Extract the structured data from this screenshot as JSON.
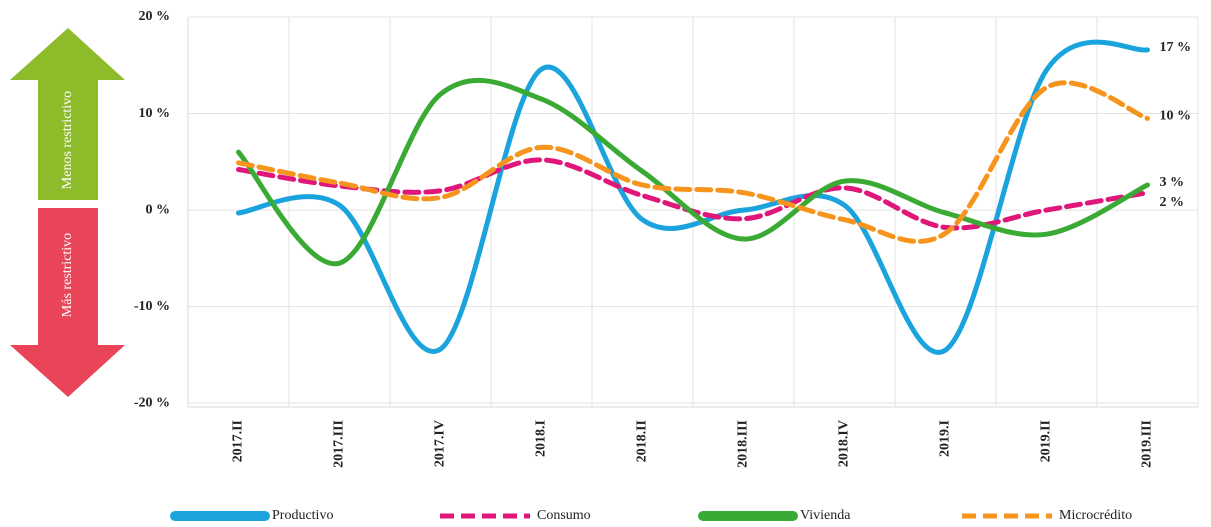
{
  "chart_data": {
    "type": "line",
    "annotations": [
      "Menos restrictivo",
      "Más restrictivo"
    ],
    "categories": [
      "2017.II",
      "2017.III",
      "2017.IV",
      "2018.I",
      "2018.II",
      "2018.III",
      "2018.IV",
      "2019.I",
      "2019.II",
      "2019.III"
    ],
    "series": [
      {
        "name": "Productivo",
        "color": "#1aa3dc",
        "dashed": false,
        "values": [
          -0.3,
          0.5,
          -14.4,
          14.6,
          -1.0,
          0.0,
          0.5,
          -14.5,
          14.5,
          16.6
        ],
        "value_labels": [
          null,
          null,
          null,
          null,
          null,
          null,
          null,
          null,
          null,
          "17 %"
        ]
      },
      {
        "name": "Consumo",
        "color": "#e0177a",
        "dashed": true,
        "values": [
          4.2,
          2.5,
          2.0,
          5.2,
          1.5,
          -0.9,
          2.3,
          -1.8,
          0.0,
          1.8
        ],
        "value_labels": [
          null,
          null,
          null,
          null,
          null,
          null,
          null,
          null,
          null,
          "2 %"
        ]
      },
      {
        "name": "Vivienda",
        "color": "#3aaa35",
        "dashed": false,
        "values": [
          6.0,
          -5.5,
          12.0,
          11.5,
          4.0,
          -3.0,
          3.0,
          -0.3,
          -2.5,
          2.6
        ],
        "value_labels": [
          null,
          null,
          null,
          null,
          null,
          null,
          null,
          null,
          null,
          "3 %"
        ]
      },
      {
        "name": "Microcrédito",
        "color": "#f7941d",
        "dashed": true,
        "values": [
          4.9,
          2.8,
          1.3,
          6.5,
          2.6,
          1.8,
          -1.0,
          -2.4,
          12.7,
          9.5
        ],
        "value_labels": [
          null,
          null,
          null,
          null,
          null,
          null,
          null,
          null,
          null,
          "10 %"
        ]
      }
    ],
    "ylim": [
      -20.4,
      20
    ],
    "yticks": [
      {
        "value": 20,
        "label": "20 %"
      },
      {
        "value": 10,
        "label": "10 %"
      },
      {
        "value": 0,
        "label": "0 %"
      },
      {
        "value": -10,
        "label": "-10 %"
      },
      {
        "value": -20,
        "label": "-20 %"
      }
    ],
    "grid": true
  }
}
